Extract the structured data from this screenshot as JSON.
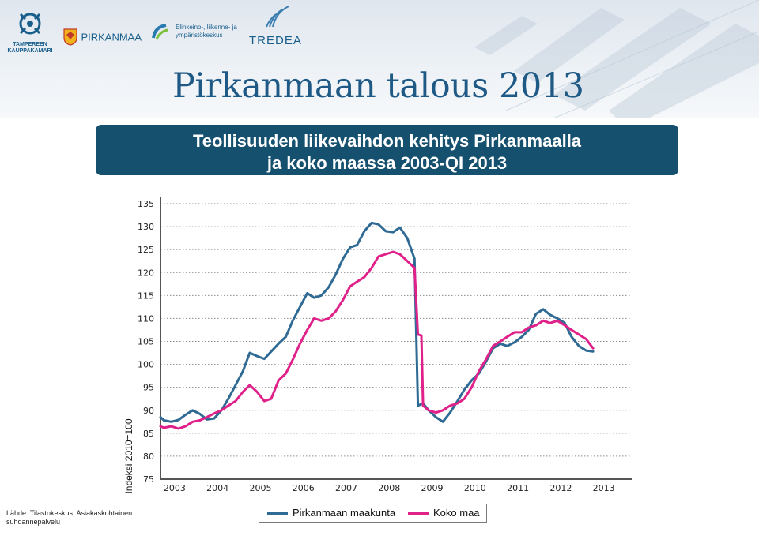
{
  "header": {
    "logos": [
      {
        "name": "TAMPEREEN KAUPPAKAMARI",
        "lines": [
          "TAMPEREEN",
          "KAUPPAKAMARI"
        ]
      },
      {
        "name": "PIRKANMAA",
        "text": "PIRKANMAA"
      },
      {
        "name": "Elinkeino-, liikenne- ja ympäristökeskus",
        "lines": [
          "Elinkeino-, liikenne- ja",
          "ympäristökeskus"
        ]
      },
      {
        "name": "TREDEA",
        "text": "TREDEA"
      }
    ],
    "hero_title": "Pirkanmaan talous 2013"
  },
  "title": {
    "line1": "Teollisuuden liikevaihdon kehitys Pirkanmaalla",
    "line2": "ja koko maassa 2003-QI 2013"
  },
  "source": {
    "line1": "Lähde: Tilastokeskus, Asiakaskohtainen",
    "line2": "suhdannepalvelu"
  },
  "colors": {
    "pirkanmaa": "#2e6a93",
    "koko_maa": "#e0218a",
    "title_box": "#15506f",
    "hero": "#1f5a86"
  },
  "legend": {
    "items": [
      {
        "label": "Pirkanmaan maakunta",
        "color": "#2e6a93"
      },
      {
        "label": "Koko maa",
        "color": "#e0218a"
      }
    ]
  },
  "chart_data": {
    "type": "line",
    "ylabel": "Indeksi 2010=100",
    "ylim": [
      75,
      135
    ],
    "yticks": [
      75,
      80,
      85,
      90,
      95,
      100,
      105,
      110,
      115,
      120,
      125,
      130,
      135
    ],
    "xticks": [
      "2003",
      "2004",
      "2005",
      "2006",
      "2007",
      "2008",
      "2009",
      "2010",
      "2011",
      "2012",
      "2013"
    ],
    "xlim": [
      2003.0,
      2014.0
    ],
    "grid": "horizontal-dotted",
    "legend_position": "bottom",
    "series": [
      {
        "name": "Pirkanmaan maakunta",
        "color": "#2e6a93",
        "points": [
          [
            2003.0,
            88.5
          ],
          [
            2003.08,
            87.8
          ],
          [
            2003.25,
            87.5
          ],
          [
            2003.42,
            87.9
          ],
          [
            2003.58,
            89.0
          ],
          [
            2003.75,
            90.0
          ],
          [
            2003.92,
            89.2
          ],
          [
            2004.08,
            88.0
          ],
          [
            2004.25,
            88.2
          ],
          [
            2004.42,
            90.0
          ],
          [
            2004.58,
            92.5
          ],
          [
            2004.75,
            95.5
          ],
          [
            2004.92,
            98.5
          ],
          [
            2005.08,
            102.5
          ],
          [
            2005.25,
            101.8
          ],
          [
            2005.42,
            101.2
          ],
          [
            2005.58,
            102.8
          ],
          [
            2005.75,
            104.5
          ],
          [
            2005.92,
            106.0
          ],
          [
            2006.08,
            109.5
          ],
          [
            2006.25,
            112.5
          ],
          [
            2006.42,
            115.5
          ],
          [
            2006.58,
            114.5
          ],
          [
            2006.75,
            115.0
          ],
          [
            2006.92,
            116.8
          ],
          [
            2007.08,
            119.5
          ],
          [
            2007.25,
            123.0
          ],
          [
            2007.42,
            125.5
          ],
          [
            2007.58,
            126.0
          ],
          [
            2007.75,
            129.0
          ],
          [
            2007.92,
            130.8
          ],
          [
            2008.08,
            130.5
          ],
          [
            2008.25,
            129.0
          ],
          [
            2008.42,
            128.8
          ],
          [
            2008.58,
            129.8
          ],
          [
            2008.75,
            127.5
          ],
          [
            2008.92,
            123.0
          ],
          [
            2009.0,
            91.0
          ],
          [
            2009.12,
            91.5
          ],
          [
            2009.25,
            90.0
          ],
          [
            2009.42,
            88.5
          ],
          [
            2009.58,
            87.5
          ],
          [
            2009.75,
            89.5
          ],
          [
            2009.92,
            92.0
          ],
          [
            2010.08,
            94.5
          ],
          [
            2010.25,
            96.5
          ],
          [
            2010.42,
            98.0
          ],
          [
            2010.58,
            100.5
          ],
          [
            2010.75,
            103.5
          ],
          [
            2010.92,
            104.5
          ],
          [
            2011.08,
            104.0
          ],
          [
            2011.25,
            104.8
          ],
          [
            2011.42,
            106.0
          ],
          [
            2011.58,
            107.5
          ],
          [
            2011.75,
            111.0
          ],
          [
            2011.92,
            112.0
          ],
          [
            2012.08,
            110.8
          ],
          [
            2012.25,
            110.0
          ],
          [
            2012.42,
            109.0
          ],
          [
            2012.58,
            106.0
          ],
          [
            2012.75,
            104.0
          ],
          [
            2012.92,
            103.0
          ],
          [
            2013.08,
            102.8
          ]
        ]
      },
      {
        "name": "Koko maa",
        "color": "#e0218a",
        "points": [
          [
            2003.0,
            86.5
          ],
          [
            2003.08,
            86.2
          ],
          [
            2003.25,
            86.5
          ],
          [
            2003.42,
            86.0
          ],
          [
            2003.58,
            86.5
          ],
          [
            2003.75,
            87.5
          ],
          [
            2003.92,
            87.8
          ],
          [
            2004.08,
            88.5
          ],
          [
            2004.25,
            89.3
          ],
          [
            2004.42,
            90.0
          ],
          [
            2004.58,
            91.0
          ],
          [
            2004.75,
            92.0
          ],
          [
            2004.92,
            94.0
          ],
          [
            2005.08,
            95.5
          ],
          [
            2005.25,
            94.0
          ],
          [
            2005.42,
            92.0
          ],
          [
            2005.58,
            92.5
          ],
          [
            2005.75,
            96.5
          ],
          [
            2005.92,
            98.0
          ],
          [
            2006.08,
            101.0
          ],
          [
            2006.25,
            104.5
          ],
          [
            2006.42,
            107.5
          ],
          [
            2006.58,
            110.0
          ],
          [
            2006.75,
            109.5
          ],
          [
            2006.92,
            110.0
          ],
          [
            2007.08,
            111.5
          ],
          [
            2007.25,
            114.0
          ],
          [
            2007.42,
            117.0
          ],
          [
            2007.58,
            118.0
          ],
          [
            2007.75,
            119.0
          ],
          [
            2007.92,
            121.0
          ],
          [
            2008.08,
            123.5
          ],
          [
            2008.25,
            124.0
          ],
          [
            2008.42,
            124.5
          ],
          [
            2008.58,
            124.0
          ],
          [
            2008.75,
            122.5
          ],
          [
            2008.92,
            121.0
          ],
          [
            2009.0,
            106.5
          ],
          [
            2009.08,
            106.3
          ],
          [
            2009.12,
            91.0
          ],
          [
            2009.25,
            90.0
          ],
          [
            2009.42,
            89.5
          ],
          [
            2009.58,
            90.0
          ],
          [
            2009.75,
            91.0
          ],
          [
            2009.92,
            91.5
          ],
          [
            2010.08,
            92.5
          ],
          [
            2010.25,
            95.0
          ],
          [
            2010.42,
            98.5
          ],
          [
            2010.58,
            101.0
          ],
          [
            2010.75,
            104.0
          ],
          [
            2010.92,
            105.0
          ],
          [
            2011.08,
            106.0
          ],
          [
            2011.25,
            107.0
          ],
          [
            2011.42,
            107.0
          ],
          [
            2011.58,
            108.0
          ],
          [
            2011.75,
            108.5
          ],
          [
            2011.92,
            109.5
          ],
          [
            2012.08,
            109.0
          ],
          [
            2012.25,
            109.5
          ],
          [
            2012.42,
            108.5
          ],
          [
            2012.58,
            107.5
          ],
          [
            2012.75,
            106.5
          ],
          [
            2012.92,
            105.5
          ],
          [
            2013.08,
            103.5
          ]
        ]
      }
    ]
  }
}
